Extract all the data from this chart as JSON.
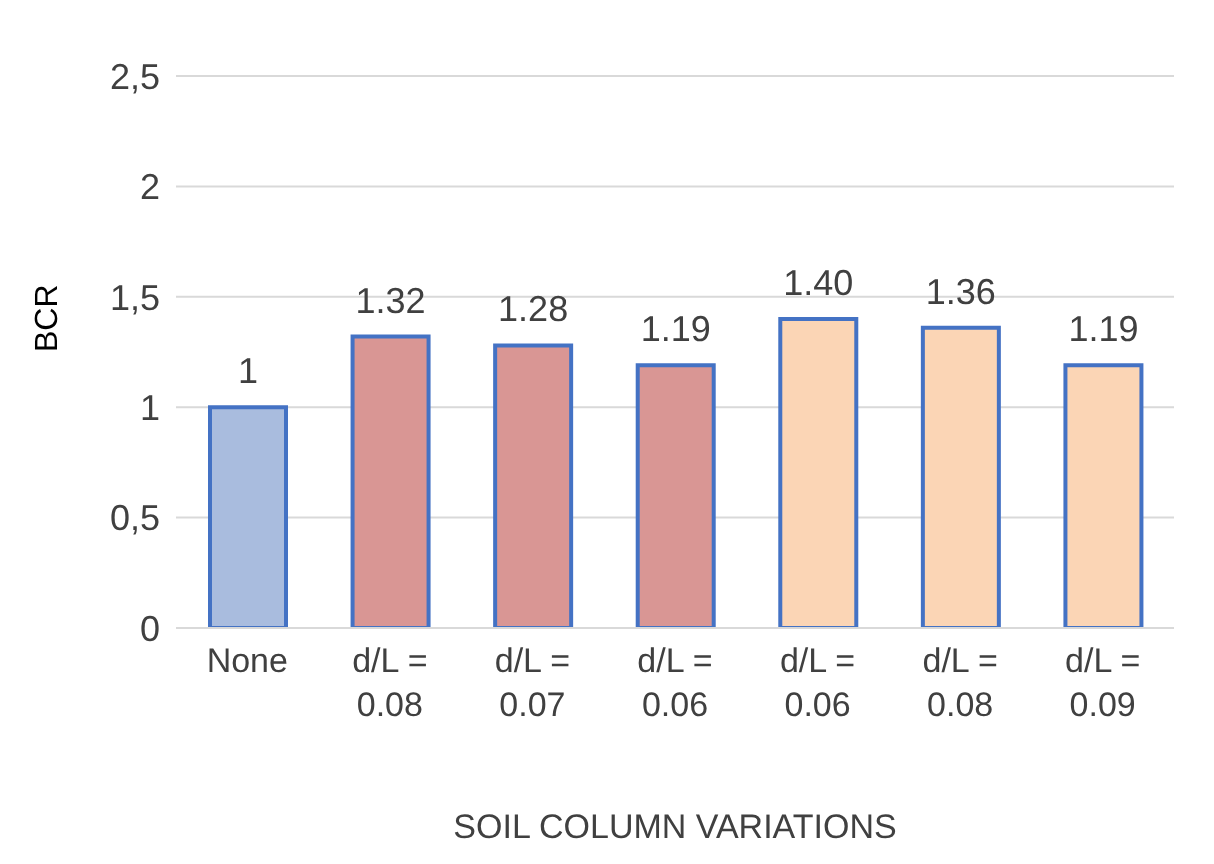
{
  "chart_data": {
    "type": "bar",
    "xlabel": "SOIL COLUMN VARIATIONS",
    "ylabel": "BCR",
    "categories": [
      "None",
      "d/L =\n0.08",
      "d/L =\n0.07",
      "d/L =\n0.06",
      "d/L =\n0.06",
      "d/L =\n0.08",
      "d/L =\n0.09"
    ],
    "values": [
      1,
      1.32,
      1.28,
      1.19,
      1.4,
      1.36,
      1.19
    ],
    "value_labels": [
      "1",
      "1.32",
      "1.28",
      "1.19",
      "1.40",
      "1.36",
      "1.19"
    ],
    "colors": [
      "#a9bcde",
      "#d99694",
      "#d99694",
      "#d99694",
      "#fbd5b5",
      "#fbd5b5",
      "#fbd5b5"
    ],
    "ylim": [
      0,
      2.5
    ],
    "yticks": [
      0,
      {
        "value": 0.5,
        "label": "0,5"
      },
      1,
      {
        "value": 1.5,
        "label": "1,5"
      },
      2,
      {
        "value": 2.5,
        "label": "2,5"
      }
    ],
    "grid": "y"
  }
}
